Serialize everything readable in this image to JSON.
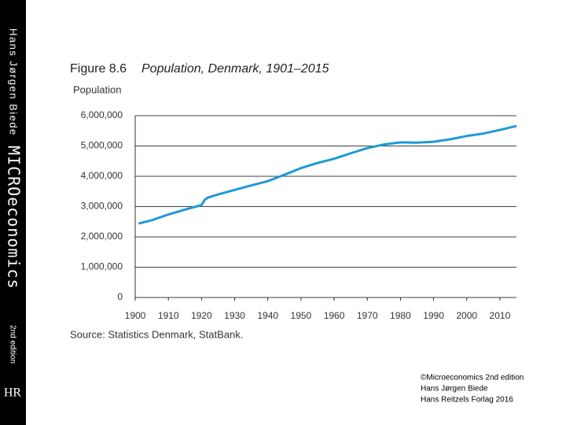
{
  "sidebar": {
    "author": "Hans Jørgen Biede",
    "book": "MICROeconomics",
    "edition": "2nd edition",
    "logo": "HR"
  },
  "credit": [
    "©Microeconomics 2nd edition",
    "Hans Jørgen Biede",
    "Hans Reitzels Forlag 2016"
  ],
  "chart_data": {
    "type": "line",
    "figure_label": "Figure 8.6",
    "title": "Population, Denmark, 1901–2015",
    "ylabel": "Population",
    "source": "Source: Statistics Denmark, StatBank.",
    "x": [
      1901,
      1905,
      1910,
      1915,
      1920,
      1921,
      1922,
      1925,
      1930,
      1935,
      1940,
      1945,
      1950,
      1955,
      1960,
      1965,
      1970,
      1975,
      1980,
      1985,
      1990,
      1995,
      2000,
      2005,
      2010,
      2015
    ],
    "series": [
      {
        "name": "Population",
        "color": "#1e9ad6",
        "values": [
          2440000,
          2550000,
          2740000,
          2900000,
          3050000,
          3230000,
          3300000,
          3400000,
          3550000,
          3700000,
          3840000,
          4050000,
          4270000,
          4440000,
          4580000,
          4760000,
          4930000,
          5050000,
          5120000,
          5110000,
          5140000,
          5220000,
          5330000,
          5410000,
          5530000,
          5660000
        ]
      }
    ],
    "xlim": [
      1900,
      2015
    ],
    "xticks": [
      1900,
      1910,
      1920,
      1930,
      1940,
      1950,
      1960,
      1970,
      1980,
      1990,
      2000,
      2010
    ],
    "ylim": [
      0,
      6000000
    ],
    "yticks": [
      0,
      {
        "value": 1000000,
        "label": "1,000,000"
      },
      {
        "value": 2000000,
        "label": "2,000,000"
      },
      {
        "value": 3000000,
        "label": "3,000,000"
      },
      {
        "value": 4000000,
        "label": "4,000,000"
      },
      {
        "value": 5000000,
        "label": "5,000,000"
      },
      {
        "value": 6000000,
        "label": "6,000,000"
      }
    ],
    "grid": true
  }
}
